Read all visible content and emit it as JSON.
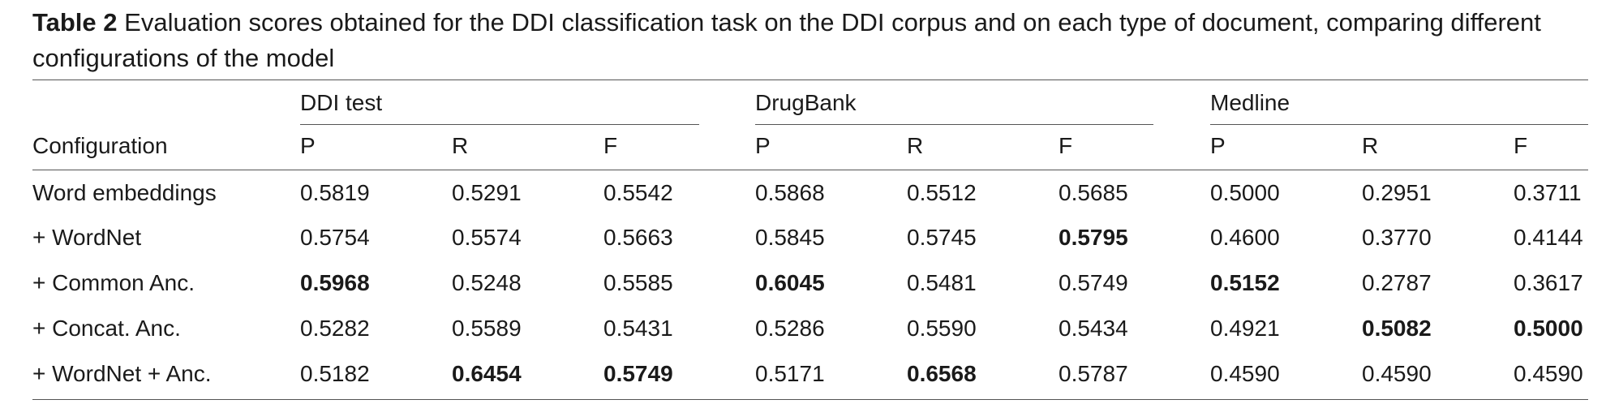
{
  "caption": {
    "label": "Table 2",
    "text": "Evaluation scores obtained for the DDI classification task on the DDI corpus and on each type of document, comparing different configurations of the model"
  },
  "table": {
    "groups": [
      "DDI test",
      "DrugBank",
      "Medline"
    ],
    "config_header": "Configuration",
    "sub_headers": [
      "P",
      "R",
      "F",
      "P",
      "R",
      "F",
      "P",
      "R",
      "F"
    ],
    "rows": [
      {
        "config": "Word embeddings",
        "values": [
          "0.5819",
          "0.5291",
          "0.5542",
          "0.5868",
          "0.5512",
          "0.5685",
          "0.5000",
          "0.2951",
          "0.3711"
        ],
        "bold": [
          false,
          false,
          false,
          false,
          false,
          false,
          false,
          false,
          false
        ]
      },
      {
        "config": "+ WordNet",
        "values": [
          "0.5754",
          "0.5574",
          "0.5663",
          "0.5845",
          "0.5745",
          "0.5795",
          "0.4600",
          "0.3770",
          "0.4144"
        ],
        "bold": [
          false,
          false,
          false,
          false,
          false,
          true,
          false,
          false,
          false
        ]
      },
      {
        "config": "+ Common Anc.",
        "values": [
          "0.5968",
          "0.5248",
          "0.5585",
          "0.6045",
          "0.5481",
          "0.5749",
          "0.5152",
          "0.2787",
          "0.3617"
        ],
        "bold": [
          true,
          false,
          false,
          true,
          false,
          false,
          true,
          false,
          false
        ]
      },
      {
        "config": "+ Concat. Anc.",
        "values": [
          "0.5282",
          "0.5589",
          "0.5431",
          "0.5286",
          "0.5590",
          "0.5434",
          "0.4921",
          "0.5082",
          "0.5000"
        ],
        "bold": [
          false,
          false,
          false,
          false,
          false,
          false,
          false,
          true,
          true
        ]
      },
      {
        "config": "+ WordNet + Anc.",
        "values": [
          "0.5182",
          "0.6454",
          "0.5749",
          "0.5171",
          "0.6568",
          "0.5787",
          "0.4590",
          "0.4590",
          "0.4590"
        ],
        "bold": [
          false,
          true,
          true,
          false,
          true,
          false,
          false,
          false,
          false
        ]
      }
    ]
  }
}
